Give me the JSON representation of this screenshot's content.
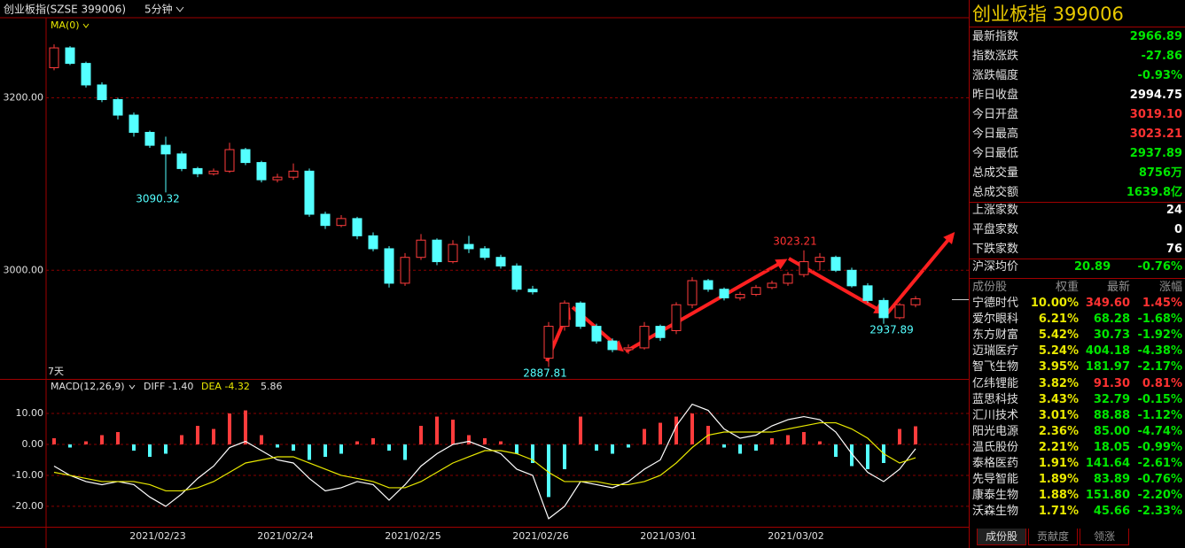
{
  "header": {
    "title": "创业板指(SZSE 399006)",
    "period": "5分钟"
  },
  "chart_data": [
    {
      "type": "candlestick",
      "indicator": "MA(0)",
      "span_label": "7天",
      "open": [
        3235,
        3258,
        3240,
        3215,
        3198,
        3180,
        3160,
        3145,
        3135,
        3118,
        3112,
        3115,
        3140,
        3125,
        3105,
        3108,
        3115,
        3065,
        3052,
        3060,
        3040,
        3025,
        2985,
        3015,
        3035,
        3010,
        3030,
        3025,
        3015,
        3005,
        2978,
        2898,
        2935,
        2962,
        2935,
        2918,
        2908,
        2910,
        2935,
        2930,
        2960,
        2988,
        2978,
        2968,
        2972,
        2980,
        2985,
        2995,
        3010,
        3015,
        3000,
        2982,
        2965,
        2945,
        2960
      ],
      "high": [
        3262,
        3260,
        3242,
        3218,
        3200,
        3183,
        3162,
        3155,
        3138,
        3120,
        3118,
        3148,
        3142,
        3127,
        3112,
        3124,
        3118,
        3068,
        3064,
        3062,
        3044,
        3028,
        3020,
        3042,
        3037,
        3035,
        3040,
        3028,
        3018,
        3008,
        2982,
        2940,
        2965,
        2964,
        2938,
        2921,
        2914,
        2940,
        2937,
        2963,
        2992,
        2990,
        2980,
        2975,
        2983,
        2988,
        2998,
        3023.21,
        3020,
        3017,
        3003,
        2985,
        2968,
        2962,
        2970
      ],
      "low": [
        3232,
        3238,
        3212,
        3195,
        3175,
        3155,
        3142,
        3090.32,
        3115,
        3108,
        3110,
        3113,
        3122,
        3102,
        3102,
        3105,
        3062,
        3048,
        3050,
        3036,
        3022,
        2980,
        2982,
        3012,
        3006,
        3008,
        3020,
        3012,
        3002,
        2975,
        2972,
        2887.81,
        2930,
        2932,
        2915,
        2905,
        2903,
        2908,
        2918,
        2926,
        2956,
        2975,
        2965,
        2965,
        2970,
        2978,
        2982,
        2992,
        3000,
        2998,
        2980,
        2962,
        2937.89,
        2943,
        2957
      ],
      "close": [
        3258,
        3240,
        3215,
        3198,
        3180,
        3160,
        3145,
        3135,
        3118,
        3112,
        3115,
        3140,
        3125,
        3105,
        3108,
        3115,
        3065,
        3052,
        3060,
        3040,
        3025,
        2985,
        3015,
        3035,
        3010,
        3030,
        3025,
        3015,
        3005,
        2978,
        2975,
        2935,
        2962,
        2935,
        2918,
        2908,
        2910,
        2935,
        2922,
        2960,
        2988,
        2978,
        2968,
        2972,
        2980,
        2985,
        2995,
        3010,
        3015,
        3000,
        2982,
        2965,
        2945,
        2960,
        2966.89
      ],
      "up_color": "#ff3c3c",
      "down_color": "#54ffff",
      "ylim": [
        2874,
        3293
      ],
      "yticks": [
        {
          "value": 3200,
          "label": "3200.00"
        },
        {
          "value": 3000,
          "label": "3000.00"
        }
      ],
      "grid": true,
      "annotations": [
        "3090.32",
        "3023.21",
        "2887.81",
        "2937.89"
      ]
    },
    {
      "type": "macd",
      "title": "MACD(12,26,9)",
      "categories": [
        null,
        null,
        null,
        null,
        null,
        null,
        null,
        "2021/02/23",
        null,
        null,
        null,
        null,
        null,
        null,
        null,
        "2021/02/24",
        null,
        null,
        null,
        null,
        null,
        null,
        null,
        "2021/02/25",
        null,
        null,
        null,
        null,
        null,
        null,
        null,
        "2021/02/26",
        null,
        null,
        null,
        null,
        null,
        null,
        null,
        "2021/03/01",
        null,
        null,
        null,
        null,
        null,
        null,
        null,
        "2021/03/02",
        null,
        null,
        null,
        null,
        null,
        null,
        null
      ],
      "histogram": [
        2,
        -1,
        1,
        3,
        4,
        -2,
        -4,
        -3,
        3,
        6,
        5,
        10,
        11,
        3,
        -1,
        -2,
        -5,
        -4,
        -3,
        1,
        2,
        -2,
        -5,
        6,
        9,
        8,
        3,
        2,
        1,
        -3,
        -6,
        -17,
        -8,
        9,
        -2,
        -3,
        -1,
        5,
        7,
        9,
        10,
        6,
        -1,
        -3,
        -2,
        2,
        3,
        4,
        1,
        -4,
        -7,
        -8,
        -6,
        5,
        5.86
      ],
      "histogram_label": "5.86",
      "up_color": "#ff3c3c",
      "down_color": "#54ffff",
      "series": [
        {
          "name": "DIFF",
          "value_label": "-1.40",
          "color": "#ffffff",
          "values": [
            -7,
            -10,
            -12,
            -13,
            -12,
            -13,
            -17,
            -20,
            -16,
            -11,
            -7,
            -1,
            1,
            -2,
            -5,
            -6,
            -11,
            -15,
            -14,
            -12,
            -13,
            -18,
            -13,
            -7,
            -3,
            0,
            1,
            -1,
            -3,
            -8,
            -10,
            -24,
            -20,
            -12,
            -13,
            -14,
            -12,
            -8,
            -5,
            6,
            13,
            11,
            5,
            2,
            3,
            6,
            8,
            9,
            8,
            4,
            -3,
            -9,
            -12,
            -8,
            -1.4
          ]
        },
        {
          "name": "DEA",
          "value_label": "-4.32",
          "color": "#e8e800",
          "values": [
            -9,
            -10,
            -11,
            -12,
            -12,
            -12,
            -13,
            -15,
            -15,
            -14,
            -12,
            -9,
            -6,
            -5,
            -4,
            -4,
            -6,
            -8,
            -10,
            -11,
            -12,
            -14,
            -14,
            -12,
            -9,
            -6,
            -4,
            -2,
            -2,
            -3,
            -5,
            -9,
            -12,
            -12,
            -12,
            -13,
            -13,
            -12,
            -10,
            -6,
            -1,
            3,
            4,
            4,
            4,
            4,
            5,
            6,
            7,
            7,
            5,
            2,
            -3,
            -6,
            -4.32
          ]
        }
      ],
      "ylim": [
        -26.6,
        20.6
      ],
      "yticks": [
        {
          "value": 10,
          "label": "10.00"
        },
        {
          "value": 0,
          "label": "0.00"
        },
        {
          "value": -10,
          "label": "-10.00"
        },
        {
          "value": -20,
          "label": "-20.00"
        }
      ],
      "grid": true
    }
  ],
  "quote": {
    "title": "创业板指  399006",
    "rows": [
      {
        "label": "最新指数",
        "value": "2966.89",
        "color": "#00e600"
      },
      {
        "label": "指数涨跌",
        "value": "-27.86",
        "color": "#00e600"
      },
      {
        "label": "涨跌幅度",
        "value": "-0.93%",
        "color": "#00e600"
      },
      {
        "label": "昨日收盘",
        "value": "2994.75",
        "color": "#ffffff"
      },
      {
        "label": "今日开盘",
        "value": "3019.10",
        "color": "#ff3232"
      },
      {
        "label": "今日最高",
        "value": "3023.21",
        "color": "#ff3232"
      },
      {
        "label": "今日最低",
        "value": "2937.89",
        "color": "#00e600"
      },
      {
        "label": "总成交量",
        "value": "8756万",
        "color": "#00e600"
      },
      {
        "label": "总成交额",
        "value": "1639.8亿",
        "color": "#00e600"
      }
    ],
    "breadth": [
      {
        "label": "上涨家数",
        "value": "24",
        "color": "#ffffff"
      },
      {
        "label": "平盘家数",
        "value": "0",
        "color": "#ffffff"
      },
      {
        "label": "下跌家数",
        "value": "76",
        "color": "#ffffff"
      }
    ],
    "average": {
      "label": "沪深均价",
      "value": "20.89",
      "change": "-0.76%",
      "color": "#00e600"
    }
  },
  "constituents": {
    "columns": [
      "成份股",
      "权重",
      "最新",
      "涨幅"
    ],
    "rows": [
      [
        "宁德时代",
        "10.00%",
        "349.60",
        "1.45%"
      ],
      [
        "爱尔眼科",
        "6.21%",
        "68.28",
        "-1.68%"
      ],
      [
        "东方财富",
        "5.42%",
        "30.73",
        "-1.92%"
      ],
      [
        "迈瑞医疗",
        "5.24%",
        "404.18",
        "-4.38%"
      ],
      [
        "智飞生物",
        "3.95%",
        "181.97",
        "-2.17%"
      ],
      [
        "亿纬锂能",
        "3.82%",
        "91.30",
        "0.81%"
      ],
      [
        "蓝思科技",
        "3.43%",
        "32.79",
        "-0.15%"
      ],
      [
        "汇川技术",
        "3.01%",
        "88.88",
        "-1.12%"
      ],
      [
        "阳光电源",
        "2.36%",
        "85.00",
        "-4.74%"
      ],
      [
        "温氏股份",
        "2.21%",
        "18.05",
        "-0.99%"
      ],
      [
        "泰格医药",
        "1.91%",
        "141.64",
        "-2.61%"
      ],
      [
        "先导智能",
        "1.89%",
        "83.89",
        "-0.76%"
      ],
      [
        "康泰生物",
        "1.88%",
        "151.80",
        "-2.20%"
      ],
      [
        "沃森生物",
        "1.71%",
        "45.66",
        "-2.33%"
      ]
    ],
    "colors": [
      "#ff3232",
      "#00e600",
      "#00e600",
      "#00e600",
      "#00e600",
      "#ff3232",
      "#00e600",
      "#00e600",
      "#00e600",
      "#00e600",
      "#00e600",
      "#00e600",
      "#00e600",
      "#00e600"
    ],
    "tabs": [
      "成份股",
      "贡献度",
      "领涨"
    ]
  }
}
